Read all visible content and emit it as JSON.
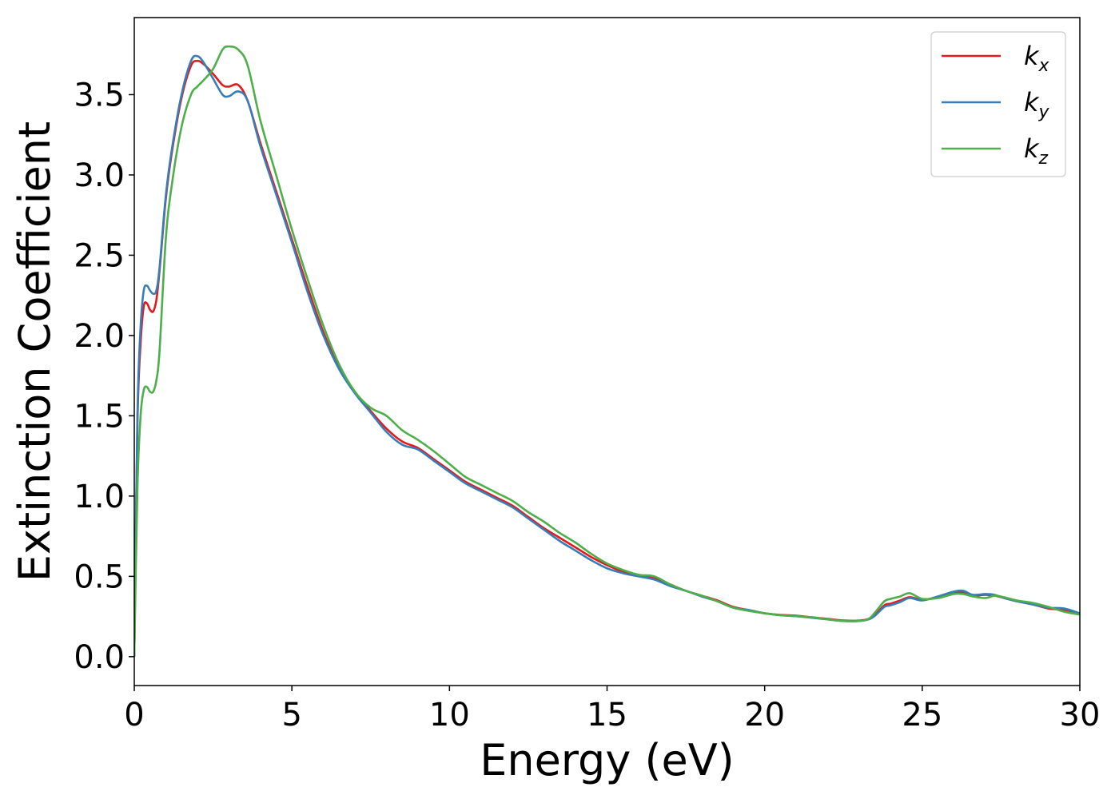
{
  "chart_data": {
    "type": "line",
    "title": "",
    "xlabel": "Energy (eV)",
    "ylabel": "Extinction Coefficient",
    "xlim": [
      0,
      30
    ],
    "ylim": [
      -0.18,
      3.98
    ],
    "xticks": [
      0,
      5,
      10,
      15,
      20,
      25,
      30
    ],
    "xtick_labels": [
      "0",
      "5",
      "10",
      "15",
      "20",
      "25",
      "30"
    ],
    "yticks": [
      0.0,
      0.5,
      1.0,
      1.5,
      2.0,
      2.5,
      3.0,
      3.5
    ],
    "ytick_labels": [
      "0.0",
      "0.5",
      "1.0",
      "1.5",
      "2.0",
      "2.5",
      "3.0",
      "3.5"
    ],
    "grid": false,
    "legend_position": "top-right",
    "x": [
      0,
      0.1,
      0.2,
      0.3,
      0.4,
      0.5,
      0.6,
      0.7,
      0.8,
      1.0,
      1.2,
      1.5,
      1.8,
      2.0,
      2.2,
      2.5,
      2.8,
      3.0,
      3.3,
      3.6,
      4.0,
      4.5,
      5.0,
      5.5,
      6.0,
      6.5,
      7.0,
      7.5,
      8.0,
      8.5,
      9.0,
      9.5,
      10.0,
      10.5,
      11.0,
      11.5,
      12.0,
      12.5,
      13.0,
      13.5,
      14.0,
      14.5,
      15.0,
      15.5,
      16.0,
      16.5,
      17.0,
      17.5,
      18.0,
      18.5,
      19.0,
      19.5,
      20.0,
      20.5,
      21.0,
      21.5,
      22.0,
      22.5,
      23.0,
      23.3,
      23.5,
      23.8,
      24.0,
      24.3,
      24.6,
      25.0,
      25.5,
      26.0,
      26.3,
      26.6,
      27.0,
      27.3,
      27.6,
      28.0,
      28.5,
      29.0,
      29.5,
      30.0
    ],
    "series": [
      {
        "name": "k",
        "subscript": "x",
        "color": "#e41a1c",
        "values": [
          0.0,
          1.45,
          1.95,
          2.18,
          2.2,
          2.16,
          2.15,
          2.22,
          2.4,
          2.85,
          3.15,
          3.48,
          3.68,
          3.71,
          3.69,
          3.63,
          3.56,
          3.55,
          3.56,
          3.46,
          3.2,
          2.9,
          2.6,
          2.3,
          2.02,
          1.8,
          1.65,
          1.53,
          1.42,
          1.34,
          1.3,
          1.23,
          1.16,
          1.09,
          1.04,
          0.99,
          0.94,
          0.87,
          0.8,
          0.74,
          0.68,
          0.62,
          0.57,
          0.53,
          0.51,
          0.49,
          0.45,
          0.41,
          0.38,
          0.35,
          0.31,
          0.29,
          0.27,
          0.26,
          0.255,
          0.245,
          0.235,
          0.225,
          0.225,
          0.235,
          0.26,
          0.32,
          0.33,
          0.35,
          0.37,
          0.355,
          0.37,
          0.395,
          0.4,
          0.38,
          0.385,
          0.38,
          0.365,
          0.345,
          0.325,
          0.3,
          0.29,
          0.265
        ]
      },
      {
        "name": "k",
        "subscript": "y",
        "color": "#377eb8",
        "values": [
          0.0,
          1.5,
          2.05,
          2.28,
          2.31,
          2.28,
          2.26,
          2.28,
          2.42,
          2.87,
          3.17,
          3.5,
          3.71,
          3.74,
          3.7,
          3.6,
          3.5,
          3.49,
          3.52,
          3.46,
          3.18,
          2.88,
          2.58,
          2.27,
          2.0,
          1.79,
          1.64,
          1.52,
          1.4,
          1.32,
          1.29,
          1.22,
          1.15,
          1.08,
          1.03,
          0.98,
          0.93,
          0.86,
          0.79,
          0.72,
          0.66,
          0.6,
          0.55,
          0.52,
          0.5,
          0.48,
          0.44,
          0.41,
          0.375,
          0.345,
          0.305,
          0.29,
          0.27,
          0.258,
          0.252,
          0.242,
          0.232,
          0.222,
          0.222,
          0.232,
          0.255,
          0.31,
          0.32,
          0.34,
          0.365,
          0.35,
          0.375,
          0.405,
          0.41,
          0.385,
          0.39,
          0.385,
          0.365,
          0.345,
          0.325,
          0.305,
          0.3,
          0.27
        ]
      },
      {
        "name": "k",
        "subscript": "z",
        "color": "#4daf4a",
        "values": [
          0.0,
          1.05,
          1.5,
          1.66,
          1.68,
          1.65,
          1.65,
          1.72,
          1.9,
          2.6,
          2.95,
          3.3,
          3.5,
          3.55,
          3.59,
          3.66,
          3.78,
          3.8,
          3.78,
          3.68,
          3.34,
          3.0,
          2.66,
          2.35,
          2.06,
          1.82,
          1.65,
          1.55,
          1.5,
          1.41,
          1.35,
          1.28,
          1.2,
          1.12,
          1.07,
          1.02,
          0.97,
          0.9,
          0.84,
          0.77,
          0.71,
          0.64,
          0.58,
          0.54,
          0.51,
          0.5,
          0.45,
          0.41,
          0.38,
          0.345,
          0.305,
          0.285,
          0.27,
          0.258,
          0.252,
          0.245,
          0.232,
          0.222,
          0.222,
          0.235,
          0.275,
          0.345,
          0.36,
          0.375,
          0.395,
          0.36,
          0.365,
          0.39,
          0.39,
          0.375,
          0.365,
          0.38,
          0.37,
          0.35,
          0.335,
          0.31,
          0.28,
          0.262
        ]
      }
    ]
  }
}
